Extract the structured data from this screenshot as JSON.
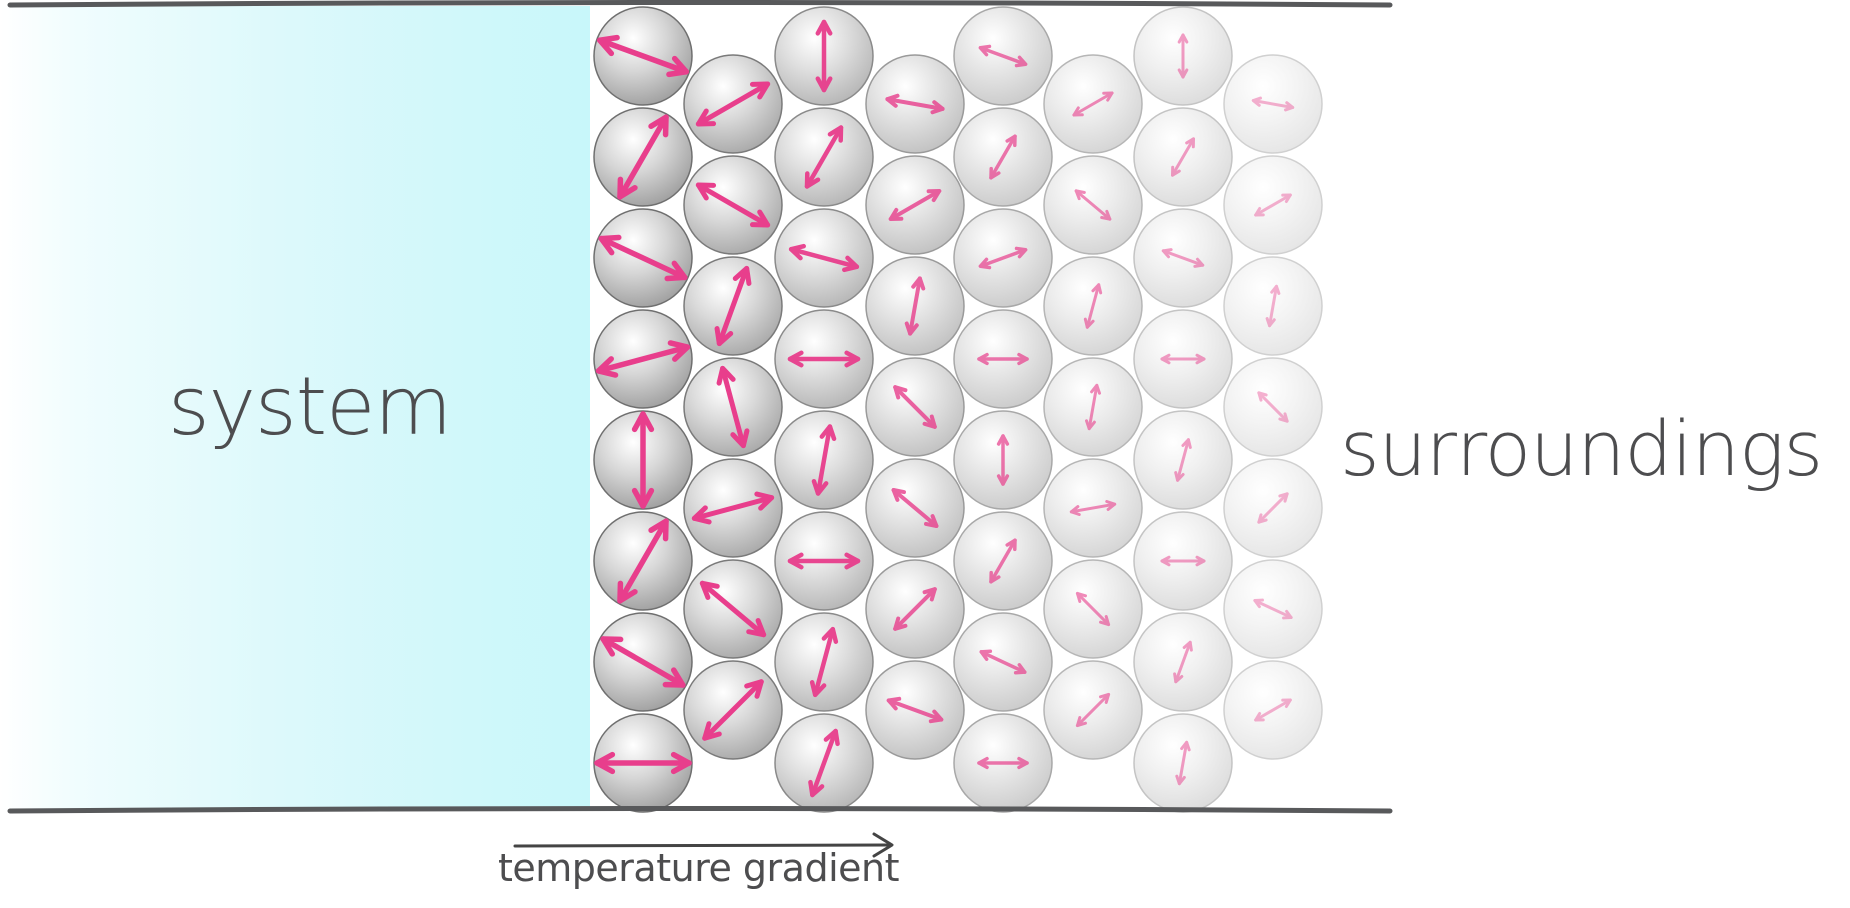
{
  "labels": {
    "system": "system",
    "surroundings": "surroundings",
    "gradient": "temperature gradient"
  },
  "colors": {
    "system_fill": "#c8f7fa",
    "wall": "#58595b",
    "arrow": "#e83e8c",
    "text": "#4d4d4f",
    "particle_hot": "#8e8e8e",
    "particle_cool": "#e8e8e8"
  },
  "particles": {
    "columns": 8,
    "count_per_column": [
      8,
      7,
      8,
      7,
      8,
      7,
      8,
      7
    ],
    "vibration_trend": "decreasing left to right"
  }
}
